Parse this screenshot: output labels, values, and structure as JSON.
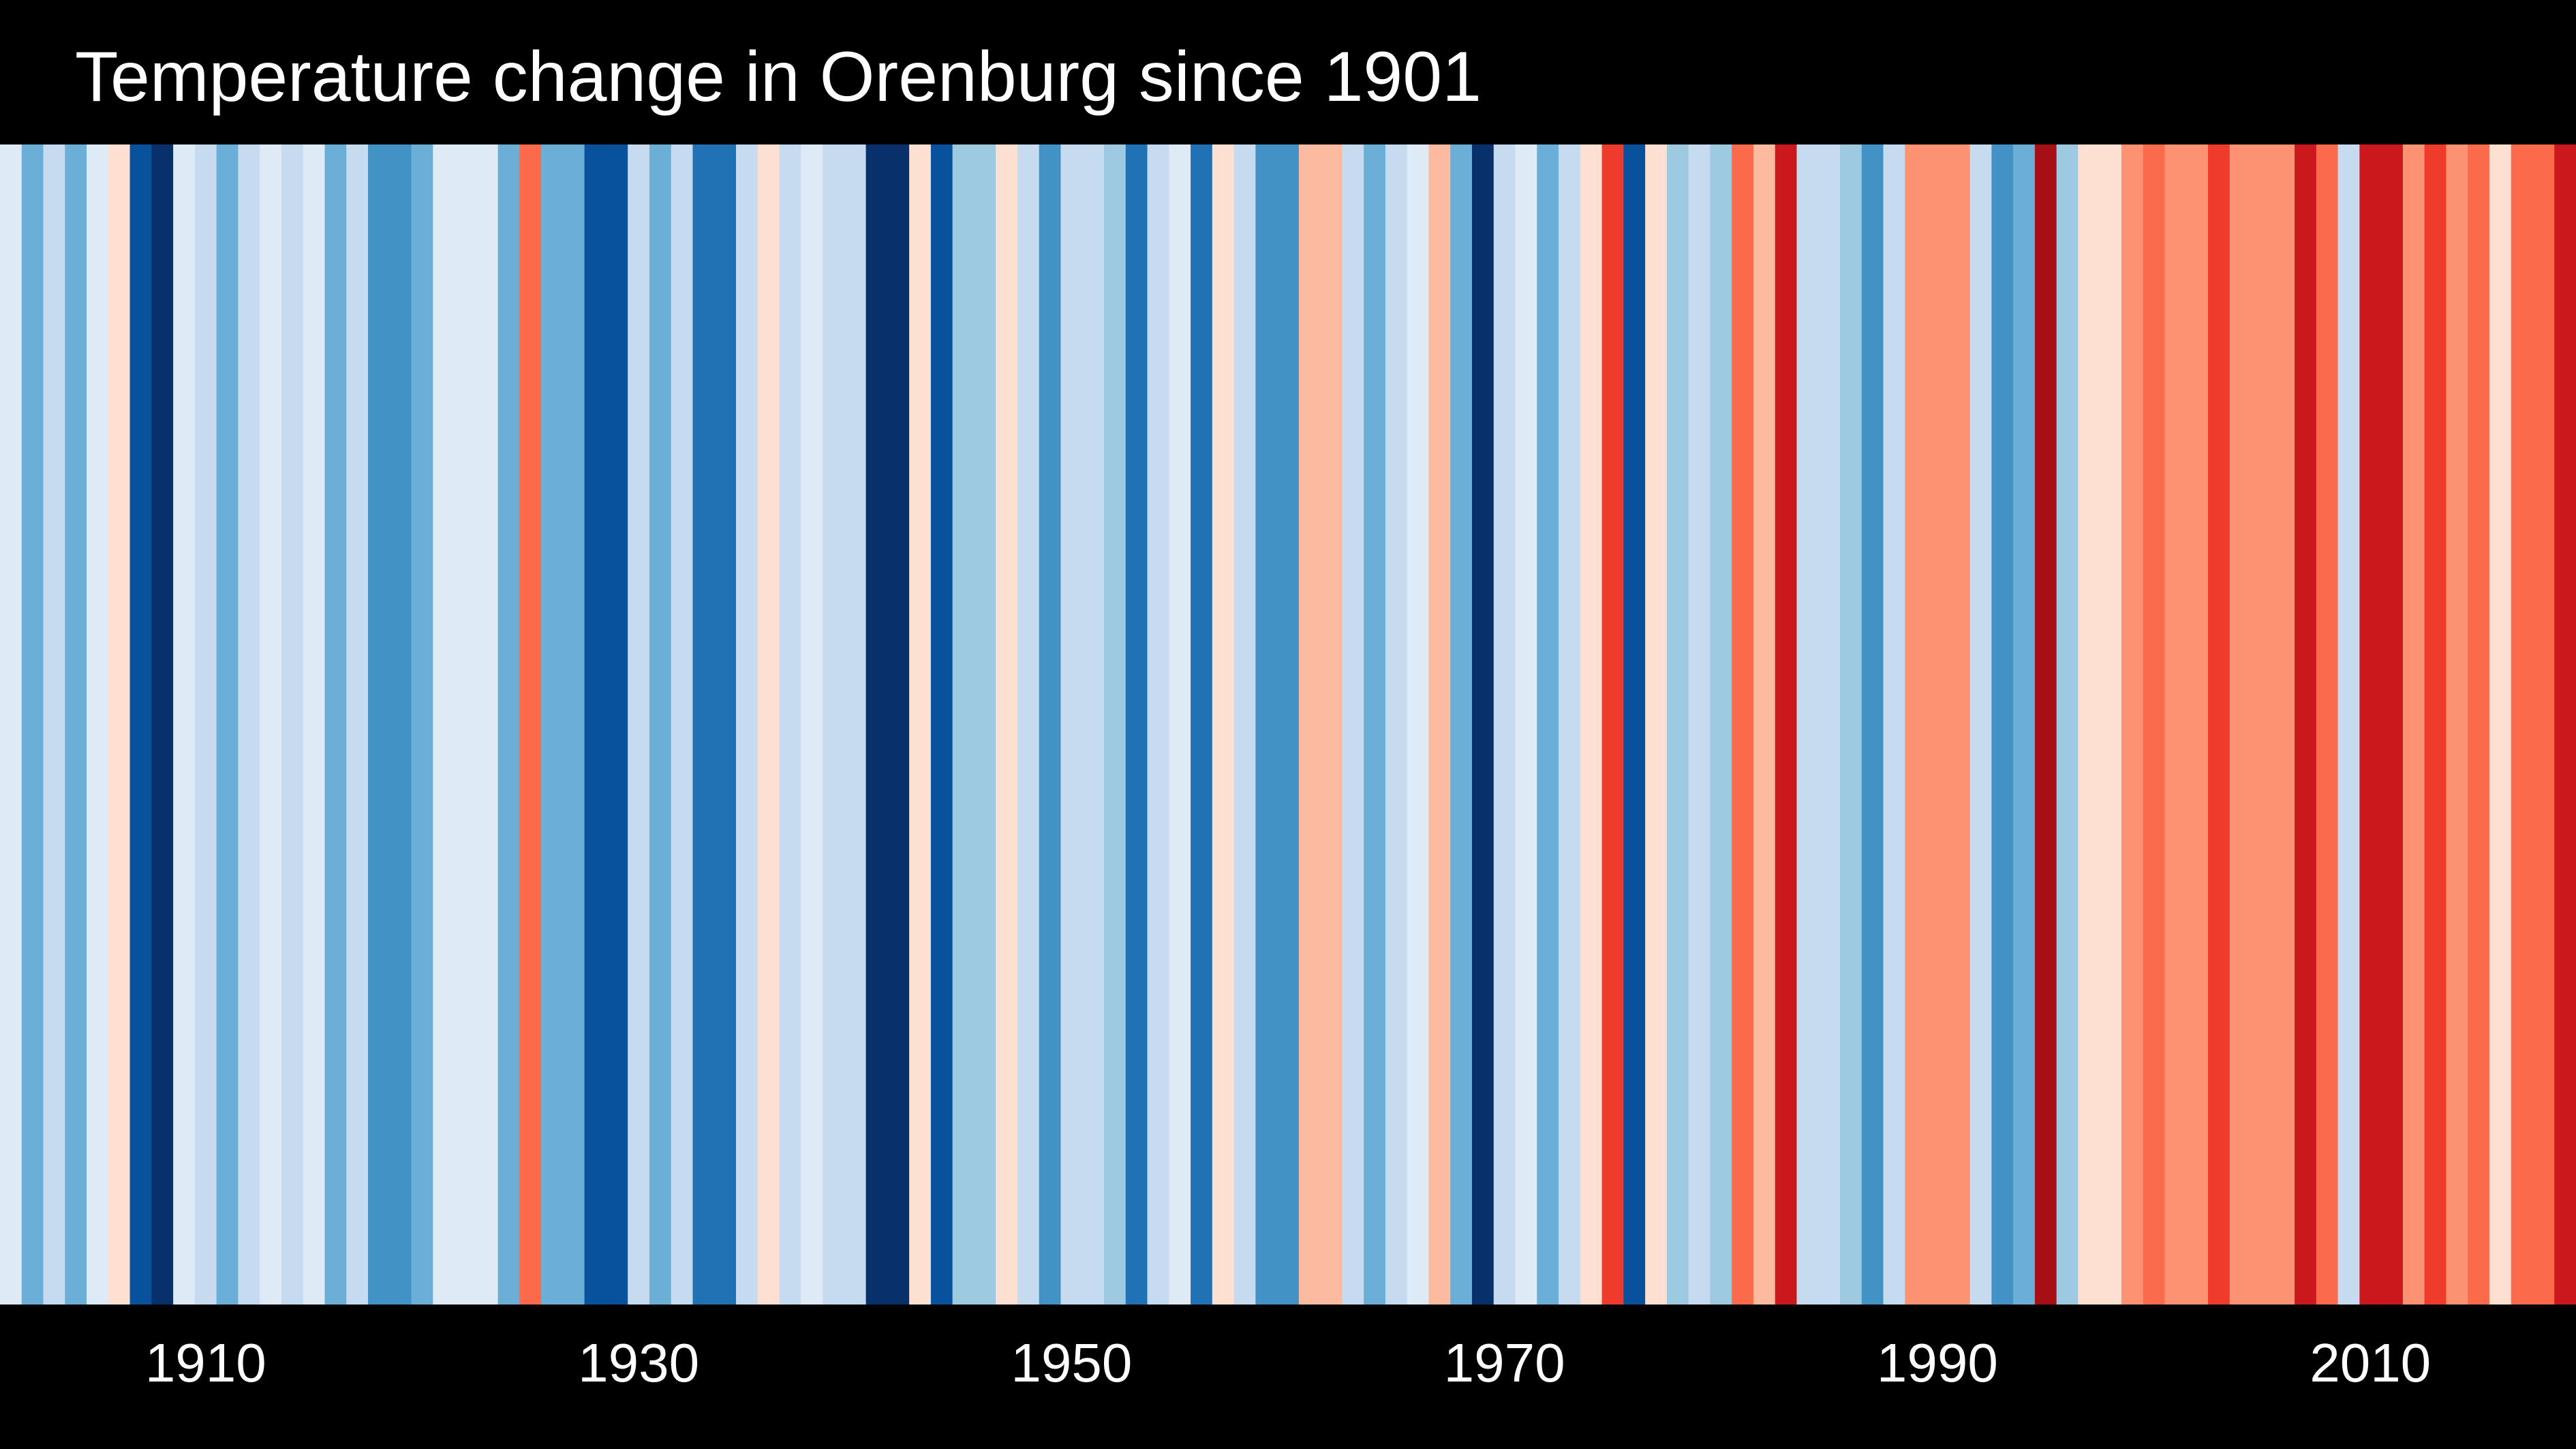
{
  "chart_data": {
    "type": "heatmap",
    "title": "Temperature change in Orenburg since 1901",
    "x": [
      1901,
      1902,
      1903,
      1904,
      1905,
      1906,
      1907,
      1908,
      1909,
      1910,
      1911,
      1912,
      1913,
      1914,
      1915,
      1916,
      1917,
      1918,
      1919,
      1920,
      1921,
      1922,
      1923,
      1924,
      1925,
      1926,
      1927,
      1928,
      1929,
      1930,
      1931,
      1932,
      1933,
      1934,
      1935,
      1936,
      1937,
      1938,
      1939,
      1940,
      1941,
      1942,
      1943,
      1944,
      1945,
      1946,
      1947,
      1948,
      1949,
      1950,
      1951,
      1952,
      1953,
      1954,
      1955,
      1956,
      1957,
      1958,
      1959,
      1960,
      1961,
      1962,
      1963,
      1964,
      1965,
      1966,
      1967,
      1968,
      1969,
      1970,
      1971,
      1972,
      1973,
      1974,
      1975,
      1976,
      1977,
      1978,
      1979,
      1980,
      1981,
      1982,
      1983,
      1984,
      1985,
      1986,
      1987,
      1988,
      1989,
      1990,
      1991,
      1992,
      1993,
      1994,
      1995,
      1996,
      1997,
      1998,
      1999,
      2000,
      2001,
      2002,
      2003,
      2004,
      2005,
      2006,
      2007,
      2008,
      2009,
      2010,
      2011,
      2012,
      2013,
      2014,
      2015,
      2016,
      2017,
      2018,
      2019
    ],
    "colors": [
      "#deebf7",
      "#6baed6",
      "#c6dbef",
      "#6baed6",
      "#deebf7",
      "#fee0d2",
      "#08519c",
      "#08306b",
      "#deebf7",
      "#c6dbef",
      "#6baed6",
      "#c6dbef",
      "#deebf7",
      "#c6dbef",
      "#deebf7",
      "#6baed6",
      "#c6dbef",
      "#4292c6",
      "#4292c6",
      "#6baed6",
      "#deebf7",
      "#deebf7",
      "#deebf7",
      "#6baed6",
      "#fb6a4a",
      "#6baed6",
      "#6baed6",
      "#08519c",
      "#08519c",
      "#c6dbef",
      "#6baed6",
      "#c6dbef",
      "#2171b5",
      "#2171b5",
      "#c6dbef",
      "#fee0d2",
      "#c6dbef",
      "#deebf7",
      "#c6dbef",
      "#c6dbef",
      "#08306b",
      "#08306b",
      "#fee0d2",
      "#08519c",
      "#9ecae1",
      "#9ecae1",
      "#fee0d2",
      "#c6dbef",
      "#4292c6",
      "#c6dbef",
      "#c6dbef",
      "#9ecae1",
      "#2171b5",
      "#c6dbef",
      "#deebf7",
      "#2171b5",
      "#fee0d2",
      "#c6dbef",
      "#4292c6",
      "#4292c6",
      "#fcbba1",
      "#fcbba1",
      "#c6dbef",
      "#6baed6",
      "#c6dbef",
      "#deebf7",
      "#fcbba1",
      "#6baed6",
      "#08306b",
      "#c6dbef",
      "#deebf7",
      "#6baed6",
      "#c6dbef",
      "#fee0d2",
      "#ef3b2c",
      "#08519c",
      "#fee0d2",
      "#9ecae1",
      "#c6dbef",
      "#9ecae1",
      "#fb6a4a",
      "#fcbba1",
      "#cb181d",
      "#c6dbef",
      "#c6dbef",
      "#9ecae1",
      "#4292c6",
      "#c6dbef",
      "#fc9272",
      "#fc9272",
      "#fc9272",
      "#c6dbef",
      "#4292c6",
      "#6baed6",
      "#a50f15",
      "#9ecae1",
      "#fee0d2",
      "#fee0d2",
      "#fc9272",
      "#fb6a4a",
      "#fc9272",
      "#fc9272",
      "#ef3b2c",
      "#fc9272",
      "#fc9272",
      "#fc9272",
      "#cb181d",
      "#fb6a4a",
      "#c6dbef",
      "#cb181d",
      "#cb181d",
      "#fc9272",
      "#ef3b2c",
      "#fc9272",
      "#fb6a4a",
      "#fee0d2",
      "#fb6a4a",
      "#fb6a4a",
      "#cb181d"
    ],
    "xticks": [
      "1910",
      "1930",
      "1950",
      "1970",
      "1990",
      "2010"
    ],
    "xtick_years": [
      1910,
      1930,
      1950,
      1970,
      1990,
      2010
    ],
    "grid": false,
    "legend": "none"
  }
}
